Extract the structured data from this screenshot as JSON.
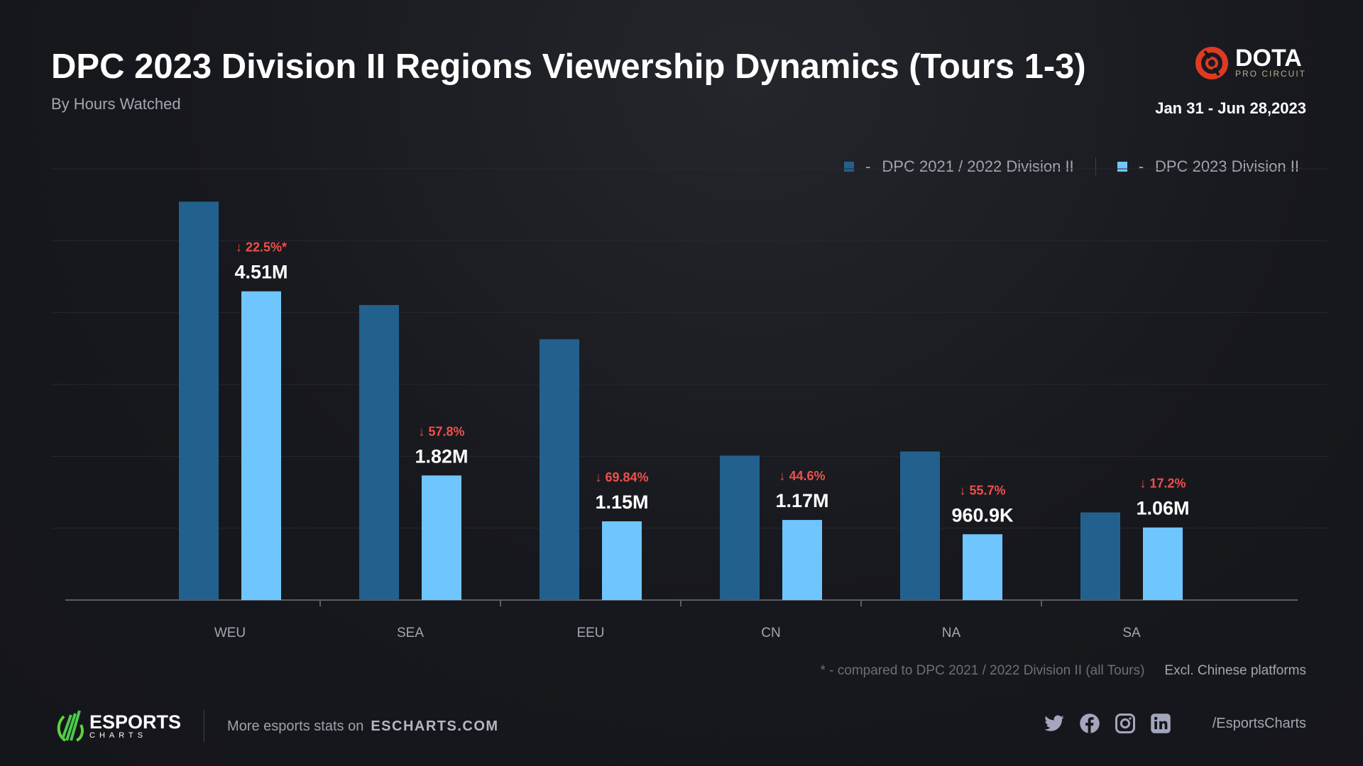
{
  "header": {
    "title": "DPC 2023 Division II Regions Viewership Dynamics (Tours 1-3)",
    "subtitle": "By Hours Watched",
    "date_range": "Jan 31 - Jun 28,2023",
    "logo": {
      "word": "DOTA",
      "sub": "PRO CIRCUIT",
      "color": "#e03a22"
    }
  },
  "chart_data": {
    "type": "bar",
    "title": "DPC 2023 Division II Regions Viewership Dynamics (Tours 1-3)",
    "subtitle": "By Hours Watched",
    "categories": [
      "WEU",
      "SEA",
      "EEU",
      "CN",
      "NA",
      "SA"
    ],
    "series": [
      {
        "name": "DPC 2021 / 2022 Division II",
        "color": "#22618e",
        "values": [
          5.82,
          4.31,
          3.81,
          2.11,
          2.17,
          1.28
        ]
      },
      {
        "name": "DPC 2023 Division II",
        "color": "#6fc6ff",
        "values": [
          4.51,
          1.82,
          1.15,
          1.17,
          0.9609,
          1.06
        ]
      }
    ],
    "value_labels": [
      "4.51M",
      "1.82M",
      "1.15M",
      "1.17M",
      "960.9K",
      "1.06M"
    ],
    "change_labels": [
      "22.5%*",
      "57.8%",
      "69.84%",
      "44.6%",
      "55.7%",
      "17.2%"
    ],
    "change_direction": "down",
    "change_color": "#f0504a",
    "unit": "hours watched (millions)",
    "ylim": [
      0,
      6.3
    ],
    "grid": true,
    "legend_position": "top-right",
    "legend_separator": "-"
  },
  "notes": {
    "footnote": "* - compared to DPC 2021 / 2022 Division II (all Tours)",
    "exclusion": "Excl. Chinese platforms"
  },
  "footer": {
    "brand_word": "ESPORTS",
    "brand_sub": "CHARTS",
    "more_text": "More esports stats on",
    "site": "ESCHARTS.COM",
    "social_icons": [
      "twitter-icon",
      "facebook-icon",
      "instagram-icon",
      "linkedin-icon"
    ],
    "handle": "/EsportsCharts"
  }
}
